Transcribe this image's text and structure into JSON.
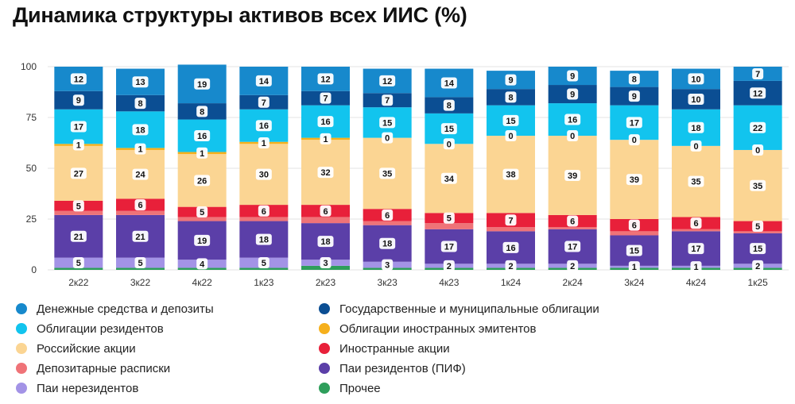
{
  "chart_data": {
    "type": "bar",
    "stacked": true,
    "title": "Динамика структуры активов всех ИИС (%)",
    "xlabel": "",
    "ylabel": "",
    "ylim": [
      0,
      100
    ],
    "yticks": [
      0,
      25,
      50,
      75,
      100
    ],
    "grid": true,
    "legend_position": "bottom",
    "categories": [
      "2к22",
      "3к22",
      "4к22",
      "1к23",
      "2к23",
      "3к23",
      "4к23",
      "1к24",
      "2к24",
      "3к24",
      "4к24",
      "1к25"
    ],
    "series": [
      {
        "name": "Прочее",
        "color": "#2e9e5b",
        "values": [
          1,
          1,
          1,
          1,
          2,
          1,
          1,
          1,
          1,
          1,
          1,
          1
        ],
        "labels": [
          "",
          "",
          "",
          "",
          "",
          "",
          "",
          "",
          "",
          "",
          "",
          ""
        ]
      },
      {
        "name": "Паи нерезидентов",
        "color": "#a393e6",
        "values": [
          5,
          5,
          4,
          5,
          3,
          3,
          2,
          2,
          2,
          1,
          1,
          2
        ],
        "labels": [
          "5",
          "5",
          "4",
          "5",
          "3",
          "3",
          "2",
          "2",
          "2",
          "1",
          "1",
          "2"
        ]
      },
      {
        "name": "Паи резидентов (ПИФ)",
        "color": "#5b3fa8",
        "values": [
          21,
          21,
          19,
          18,
          18,
          18,
          17,
          16,
          17,
          15,
          17,
          15
        ],
        "labels": [
          "21",
          "21",
          "19",
          "18",
          "18",
          "18",
          "17",
          "16",
          "17",
          "15",
          "17",
          "15"
        ]
      },
      {
        "name": "Депозитарные расписки",
        "color": "#ef7378",
        "values": [
          2,
          2,
          2,
          2,
          3,
          2,
          3,
          2,
          1,
          2,
          1,
          1
        ],
        "labels": [
          "",
          "",
          "",
          "",
          "",
          "",
          "",
          "",
          "",
          "",
          "",
          ""
        ]
      },
      {
        "name": "Иностранные акции",
        "color": "#e8203a",
        "values": [
          5,
          6,
          5,
          6,
          6,
          6,
          5,
          7,
          6,
          6,
          6,
          5
        ],
        "labels": [
          "5",
          "6",
          "5",
          "6",
          "6",
          "6",
          "5",
          "7",
          "6",
          "6",
          "6",
          "5"
        ]
      },
      {
        "name": "Российские акции",
        "color": "#fbd593",
        "values": [
          27,
          24,
          26,
          30,
          32,
          35,
          34,
          38,
          39,
          39,
          35,
          35
        ],
        "labels": [
          "27",
          "24",
          "26",
          "30",
          "32",
          "35",
          "34",
          "38",
          "39",
          "39",
          "35",
          "35"
        ]
      },
      {
        "name": "Облигации иностранных эмитентов",
        "color": "#f6b01c",
        "values": [
          1,
          1,
          1,
          1,
          1,
          0,
          0,
          0,
          0,
          0,
          0,
          0
        ],
        "labels": [
          "1",
          "1",
          "1",
          "1",
          "1",
          "0",
          "0",
          "0",
          "0",
          "0",
          "0",
          "0"
        ]
      },
      {
        "name": "Облигации резидентов",
        "color": "#12c4ee",
        "values": [
          17,
          18,
          16,
          16,
          16,
          15,
          15,
          15,
          16,
          17,
          18,
          22
        ],
        "labels": [
          "17",
          "18",
          "16",
          "16",
          "16",
          "15",
          "15",
          "15",
          "16",
          "17",
          "18",
          "22"
        ]
      },
      {
        "name": "Государственные и муниципальные облигации",
        "color": "#0b4e93",
        "values": [
          9,
          8,
          8,
          7,
          7,
          7,
          8,
          8,
          9,
          9,
          10,
          12
        ],
        "labels": [
          "9",
          "8",
          "8",
          "7",
          "7",
          "7",
          "8",
          "8",
          "9",
          "9",
          "10",
          "12"
        ]
      },
      {
        "name": "Денежные средства и депозиты",
        "color": "#1789cc",
        "values": [
          12,
          13,
          19,
          14,
          12,
          12,
          14,
          9,
          9,
          8,
          10,
          7
        ],
        "labels": [
          "12",
          "13",
          "19",
          "14",
          "12",
          "12",
          "14",
          "9",
          "9",
          "8",
          "10",
          "7"
        ]
      }
    ]
  },
  "legend": [
    {
      "name": "Денежные средства и депозиты",
      "color": "#1789cc"
    },
    {
      "name": "Государственные и муниципальные облигации",
      "color": "#0b4e93"
    },
    {
      "name": "Облигации резидентов",
      "color": "#12c4ee"
    },
    {
      "name": "Облигации иностранных эмитентов",
      "color": "#f6b01c"
    },
    {
      "name": "Российские акции",
      "color": "#fbd593"
    },
    {
      "name": "Иностранные акции",
      "color": "#e8203a"
    },
    {
      "name": "Депозитарные расписки",
      "color": "#ef7378"
    },
    {
      "name": "Паи резидентов (ПИФ)",
      "color": "#5b3fa8"
    },
    {
      "name": "Паи нерезидентов",
      "color": "#a393e6"
    },
    {
      "name": "Прочее",
      "color": "#2e9e5b"
    }
  ]
}
